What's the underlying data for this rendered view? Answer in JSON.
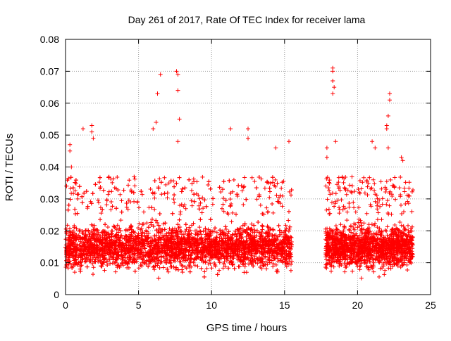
{
  "chart_data": {
    "type": "scatter",
    "title": "Day 261 of 2017, Rate Of TEC Index for receiver lama",
    "xlabel": "GPS time / hours",
    "ylabel": "ROTI / TECUs",
    "xlim": [
      0,
      25
    ],
    "ylim": [
      0,
      0.08
    ],
    "x_ticks": [
      "0",
      "5",
      "10",
      "15",
      "20",
      "25"
    ],
    "y_ticks": [
      "0",
      "0.01",
      "0.02",
      "0.03",
      "0.04",
      "0.05",
      "0.06",
      "0.07",
      "0.08"
    ],
    "grid": true,
    "marker": "+",
    "color": "#ff0000",
    "segments": [
      {
        "x_start": 0.0,
        "x_end": 15.5,
        "typical_min": 0.005,
        "typical_max": 0.025
      },
      {
        "x_start": 17.8,
        "x_end": 23.8,
        "typical_min": 0.005,
        "typical_max": 0.025
      }
    ],
    "notable_points": [
      {
        "x": 0.3,
        "y": 0.047
      },
      {
        "x": 0.3,
        "y": 0.045
      },
      {
        "x": 0.4,
        "y": 0.04
      },
      {
        "x": 1.2,
        "y": 0.052
      },
      {
        "x": 1.8,
        "y": 0.053
      },
      {
        "x": 1.8,
        "y": 0.051
      },
      {
        "x": 1.9,
        "y": 0.049
      },
      {
        "x": 6.0,
        "y": 0.052
      },
      {
        "x": 6.2,
        "y": 0.054
      },
      {
        "x": 6.3,
        "y": 0.063
      },
      {
        "x": 6.5,
        "y": 0.069
      },
      {
        "x": 7.6,
        "y": 0.07
      },
      {
        "x": 7.7,
        "y": 0.069
      },
      {
        "x": 7.7,
        "y": 0.064
      },
      {
        "x": 7.8,
        "y": 0.055
      },
      {
        "x": 7.7,
        "y": 0.048
      },
      {
        "x": 11.3,
        "y": 0.052
      },
      {
        "x": 12.5,
        "y": 0.052
      },
      {
        "x": 12.5,
        "y": 0.049
      },
      {
        "x": 14.4,
        "y": 0.046
      },
      {
        "x": 15.3,
        "y": 0.048
      },
      {
        "x": 18.3,
        "y": 0.071
      },
      {
        "x": 18.3,
        "y": 0.07
      },
      {
        "x": 18.3,
        "y": 0.067
      },
      {
        "x": 18.4,
        "y": 0.065
      },
      {
        "x": 18.3,
        "y": 0.063
      },
      {
        "x": 18.5,
        "y": 0.048
      },
      {
        "x": 22.2,
        "y": 0.063
      },
      {
        "x": 22.2,
        "y": 0.061
      },
      {
        "x": 22.1,
        "y": 0.056
      },
      {
        "x": 22.0,
        "y": 0.053
      },
      {
        "x": 22.0,
        "y": 0.052
      },
      {
        "x": 21.0,
        "y": 0.048
      },
      {
        "x": 21.2,
        "y": 0.046
      },
      {
        "x": 22.1,
        "y": 0.046
      },
      {
        "x": 17.9,
        "y": 0.046
      },
      {
        "x": 17.9,
        "y": 0.043
      },
      {
        "x": 23.0,
        "y": 0.043
      },
      {
        "x": 23.1,
        "y": 0.042
      }
    ]
  }
}
